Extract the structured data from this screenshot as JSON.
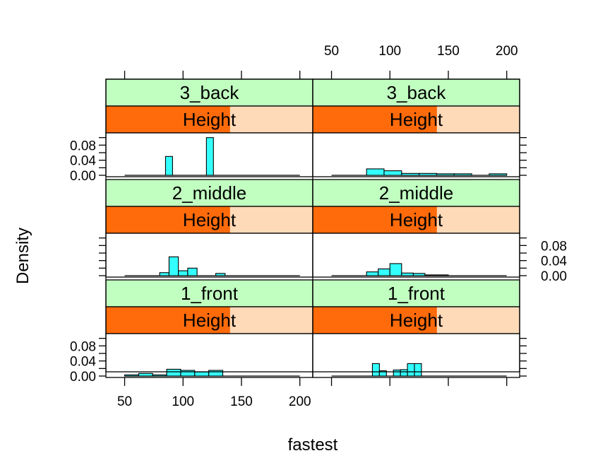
{
  "chart_data": {
    "type": "histogram",
    "layout": "lattice 2 columns x 3 rows",
    "xlabel": "fastest",
    "ylabel": "Density",
    "xlim": [
      40,
      205
    ],
    "ylim": [
      0,
      0.105
    ],
    "x_ticks": [
      50,
      100,
      150,
      200
    ],
    "x_tick_labels": [
      "50",
      "100",
      "150",
      "200"
    ],
    "y_ticks": [
      0,
      0.04,
      0.08
    ],
    "y_tick_labels": [
      "0.00",
      "0.04",
      "0.08"
    ],
    "strip": {
      "row_variable_label": "Height",
      "height_range": [
        0,
        1
      ],
      "colors": {
        "top_strip": "#c1ffc1",
        "height_strip": "#ffdab9",
        "height_fill": "#ff6a0a",
        "bars": "#33ffff",
        "panel_border": "#000000"
      }
    },
    "panels": [
      {
        "row": "3_back",
        "column": 1,
        "height_level": 0.6,
        "bars": [
          {
            "x0": 85,
            "x1": 91,
            "density": 0.05
          },
          {
            "x0": 120,
            "x1": 126,
            "density": 0.1
          }
        ]
      },
      {
        "row": "3_back",
        "column": 2,
        "height_level": 0.6,
        "bars": [
          {
            "x0": 80,
            "x1": 95,
            "density": 0.017
          },
          {
            "x0": 95,
            "x1": 110,
            "density": 0.012
          },
          {
            "x0": 110,
            "x1": 125,
            "density": 0.005
          },
          {
            "x0": 125,
            "x1": 140,
            "density": 0.005
          },
          {
            "x0": 140,
            "x1": 155,
            "density": 0.004
          },
          {
            "x0": 155,
            "x1": 170,
            "density": 0.004
          },
          {
            "x0": 185,
            "x1": 200,
            "density": 0.004
          }
        ]
      },
      {
        "row": "2_middle",
        "column": 1,
        "height_level": 0.6,
        "bars": [
          {
            "x0": 80,
            "x1": 88,
            "density": 0.008
          },
          {
            "x0": 88,
            "x1": 96,
            "density": 0.05
          },
          {
            "x0": 96,
            "x1": 104,
            "density": 0.013
          },
          {
            "x0": 104,
            "x1": 112,
            "density": 0.02
          },
          {
            "x0": 128,
            "x1": 136,
            "density": 0.006
          }
        ]
      },
      {
        "row": "2_middle",
        "column": 2,
        "height_level": 0.6,
        "bars": [
          {
            "x0": 80,
            "x1": 90,
            "density": 0.01
          },
          {
            "x0": 90,
            "x1": 100,
            "density": 0.018
          },
          {
            "x0": 100,
            "x1": 110,
            "density": 0.032
          },
          {
            "x0": 110,
            "x1": 120,
            "density": 0.007
          },
          {
            "x0": 120,
            "x1": 130,
            "density": 0.006
          },
          {
            "x0": 130,
            "x1": 150,
            "density": 0.002
          }
        ]
      },
      {
        "row": "1_front",
        "column": 1,
        "height_level": 0.6,
        "bars": [
          {
            "x0": 50,
            "x1": 62,
            "density": 0.003
          },
          {
            "x0": 62,
            "x1": 74,
            "density": 0.007
          },
          {
            "x0": 74,
            "x1": 86,
            "density": 0.003
          },
          {
            "x0": 86,
            "x1": 98,
            "density": 0.018
          },
          {
            "x0": 98,
            "x1": 110,
            "density": 0.015
          },
          {
            "x0": 110,
            "x1": 122,
            "density": 0.011
          },
          {
            "x0": 122,
            "x1": 134,
            "density": 0.015
          }
        ]
      },
      {
        "row": "1_front",
        "column": 2,
        "height_level": 0.6,
        "bars": [
          {
            "x0": 85,
            "x1": 91,
            "density": 0.033
          },
          {
            "x0": 91,
            "x1": 97,
            "density": 0.014
          },
          {
            "x0": 97,
            "x1": 103,
            "density": 0.0
          },
          {
            "x0": 103,
            "x1": 109,
            "density": 0.016
          },
          {
            "x0": 109,
            "x1": 115,
            "density": 0.017
          },
          {
            "x0": 115,
            "x1": 121,
            "density": 0.033
          },
          {
            "x0": 121,
            "x1": 127,
            "density": 0.033
          }
        ]
      }
    ]
  }
}
